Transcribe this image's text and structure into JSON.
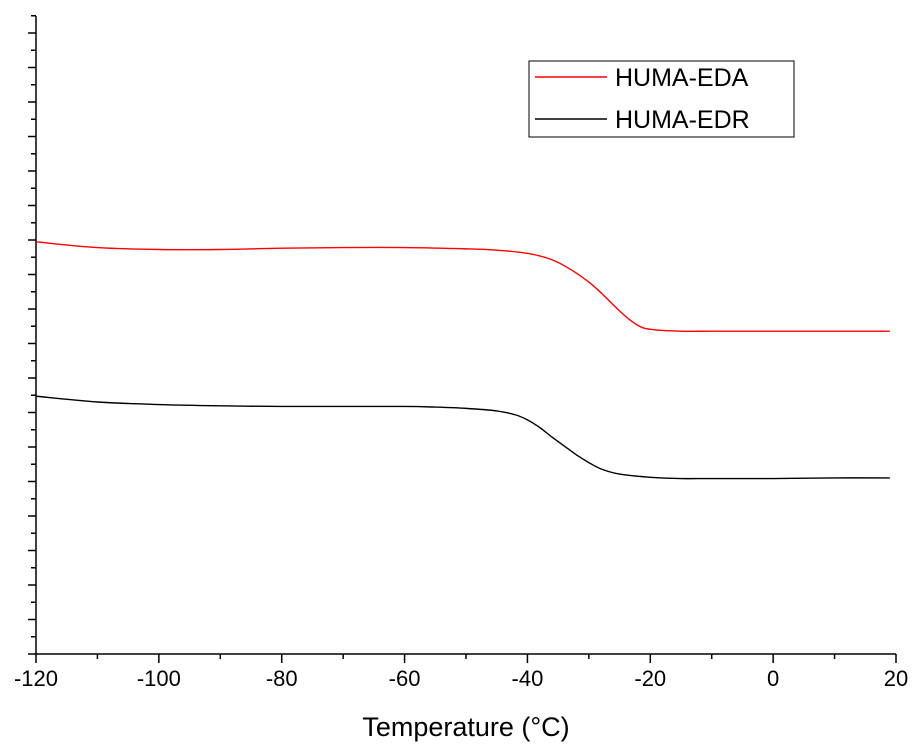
{
  "chart_data": {
    "type": "line",
    "xlabel": "Temperature (°C)",
    "ylabel": "",
    "xlim": [
      -120,
      20
    ],
    "x_ticks": [
      "-120",
      "-100",
      "-80",
      "-60",
      "-40",
      "-20",
      "0",
      "20"
    ],
    "y_axis": "unlabeled (relative heat flow, no tick labels)",
    "ylim": [
      0,
      1
    ],
    "grid": false,
    "legend": {
      "placement": "top-right",
      "boxed": true
    },
    "series": [
      {
        "name": "HUMA-EDA",
        "color": "#ff0000",
        "x": [
          -120,
          -110,
          -100,
          -90,
          -80,
          -70,
          -60,
          -50,
          -45,
          -40,
          -36,
          -33,
          -30,
          -28,
          -26,
          -24,
          -22,
          -20,
          -15,
          -10,
          -5,
          0,
          10,
          19
        ],
        "y": [
          0.646,
          0.637,
          0.634,
          0.634,
          0.636,
          0.637,
          0.637,
          0.635,
          0.633,
          0.628,
          0.618,
          0.603,
          0.583,
          0.566,
          0.547,
          0.529,
          0.515,
          0.509,
          0.506,
          0.506,
          0.506,
          0.506,
          0.506,
          0.506
        ]
      },
      {
        "name": "HUMA-EDR",
        "color": "#000000",
        "x": [
          -120,
          -110,
          -100,
          -90,
          -80,
          -70,
          -60,
          -55,
          -50,
          -45,
          -42,
          -40,
          -38,
          -36,
          -34,
          -32,
          -30,
          -28,
          -25,
          -20,
          -15,
          -10,
          0,
          10,
          19
        ],
        "y": [
          0.404,
          0.395,
          0.391,
          0.389,
          0.388,
          0.388,
          0.388,
          0.387,
          0.385,
          0.381,
          0.375,
          0.367,
          0.355,
          0.34,
          0.326,
          0.312,
          0.3,
          0.29,
          0.282,
          0.277,
          0.275,
          0.275,
          0.275,
          0.276,
          0.276
        ]
      }
    ]
  }
}
